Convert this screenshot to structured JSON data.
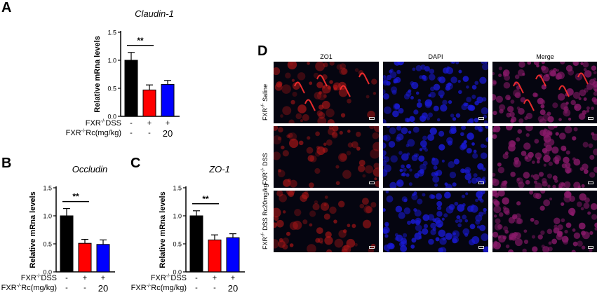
{
  "panels": {
    "A": "A",
    "B": "B",
    "C": "C",
    "D": "D"
  },
  "chart_data": [
    {
      "panel": "A",
      "type": "bar",
      "title": "Claudin-1",
      "ylabel": "Relative mRna levels",
      "ylim": [
        0,
        1.5
      ],
      "yticks": [
        "0.0",
        "0.5",
        "1.0",
        "1.5"
      ],
      "values": [
        1.0,
        0.47,
        0.57
      ],
      "errors": [
        0.14,
        0.09,
        0.07
      ],
      "colors": [
        "#000000",
        "#ff0000",
        "#0000ff"
      ],
      "significance": "**",
      "conditions": [
        {
          "label": "FXR-/-DSS",
          "cells": [
            "-",
            "+",
            "+"
          ]
        },
        {
          "label": "FXR-/-Rc(mg/kg)",
          "cells": [
            "-",
            "-",
            "20"
          ]
        }
      ]
    },
    {
      "panel": "B",
      "type": "bar",
      "title": "Occludin",
      "ylabel": "Relative mRna levels",
      "ylim": [
        0,
        1.5
      ],
      "yticks": [
        "0.0",
        "0.5",
        "1.0",
        "1.5"
      ],
      "values": [
        1.0,
        0.51,
        0.49
      ],
      "errors": [
        0.13,
        0.07,
        0.08
      ],
      "colors": [
        "#000000",
        "#ff0000",
        "#0000ff"
      ],
      "significance": "**",
      "conditions": [
        {
          "label": "FXR-/-DSS",
          "cells": [
            "-",
            "+",
            "+"
          ]
        },
        {
          "label": "FXR-/-Rc(mg/kg)",
          "cells": [
            "-",
            "-",
            "20"
          ]
        }
      ]
    },
    {
      "panel": "C",
      "type": "bar",
      "title": "ZO-1",
      "ylabel": "Relative mRna levels",
      "ylim": [
        0,
        1.5
      ],
      "yticks": [
        "0.0",
        "0.5",
        "1.0",
        "1.5"
      ],
      "values": [
        1.0,
        0.57,
        0.61
      ],
      "errors": [
        0.09,
        0.09,
        0.07
      ],
      "colors": [
        "#000000",
        "#ff0000",
        "#0000ff"
      ],
      "significance": "**",
      "conditions": [
        {
          "label": "FXR-/-DSS",
          "cells": [
            "-",
            "+",
            "+"
          ]
        },
        {
          "label": "FXR-/-Rc(mg/kg)",
          "cells": [
            "-",
            "-",
            "20"
          ]
        }
      ]
    }
  ],
  "microscopy": {
    "columns": [
      "ZO1",
      "DAPI",
      "Merge"
    ],
    "rows": [
      "FXR-/- Saline",
      "FXR-/- DSS",
      "FXR-/- DSS Rc20mg/kg"
    ],
    "channel_colors": {
      "ZO1": "#b81818",
      "DAPI": "#1a1ad8",
      "Merge": "#8a1a6a"
    }
  }
}
